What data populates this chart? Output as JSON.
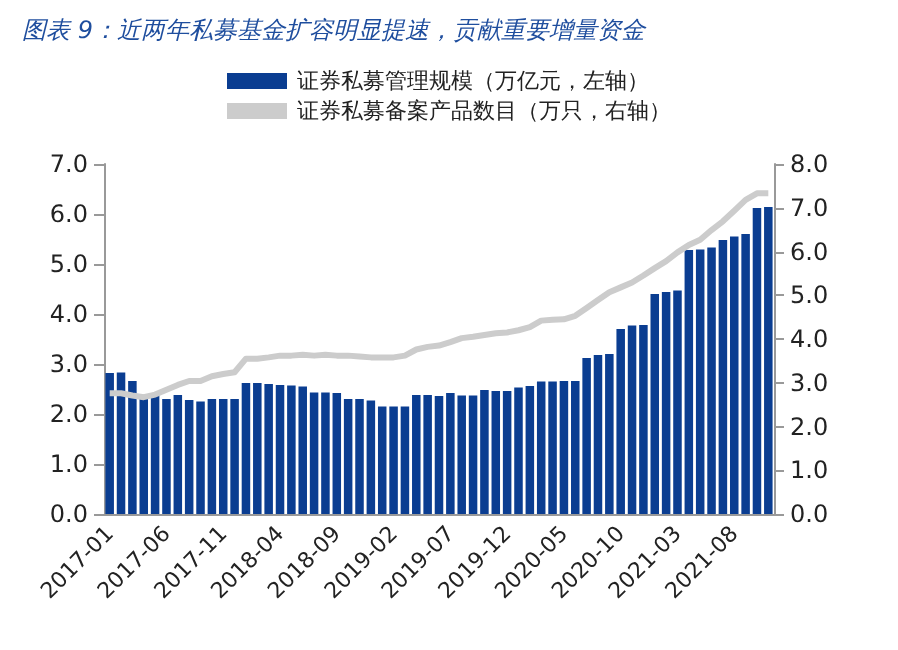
{
  "chart_data": {
    "type": "bar",
    "title": "图表 9：近两年私募基金扩容明显提速，贡献重要增量资金",
    "categories": [
      "2017-01",
      null,
      null,
      null,
      null,
      "2017-06",
      null,
      null,
      null,
      null,
      "2017-11",
      null,
      null,
      null,
      null,
      "2018-04",
      null,
      null,
      null,
      null,
      "2018-09",
      null,
      null,
      null,
      null,
      "2019-02",
      null,
      null,
      null,
      null,
      "2019-07",
      null,
      null,
      null,
      null,
      "2019-12",
      null,
      null,
      null,
      null,
      "2020-05",
      null,
      null,
      null,
      null,
      "2020-10",
      null,
      null,
      null,
      null,
      "2021-03",
      null,
      null,
      null,
      null,
      "2021-08",
      null,
      null,
      null
    ],
    "series": [
      {
        "name": "证券私募管理规模（万亿元，左轴）",
        "color": "#0a3d91",
        "values": [
          2.82,
          2.83,
          2.66,
          2.35,
          2.38,
          2.3,
          2.38,
          2.28,
          2.25,
          2.3,
          2.3,
          2.3,
          2.62,
          2.62,
          2.6,
          2.58,
          2.57,
          2.55,
          2.43,
          2.43,
          2.42,
          2.3,
          2.3,
          2.27,
          2.15,
          2.15,
          2.15,
          2.38,
          2.38,
          2.36,
          2.42,
          2.37,
          2.37,
          2.48,
          2.46,
          2.46,
          2.53,
          2.56,
          2.65,
          2.65,
          2.66,
          2.66,
          3.12,
          3.18,
          3.2,
          3.7,
          3.77,
          3.78,
          4.4,
          4.44,
          4.47,
          5.28,
          5.29,
          5.33,
          5.48,
          5.55,
          5.6,
          6.12,
          6.14
        ]
      },
      {
        "name": "证券私募备案产品数目（万只，右轴）",
        "type": "line",
        "axis": "y2",
        "color": "#cccccc",
        "values": [
          2.76,
          2.76,
          2.71,
          2.67,
          2.73,
          2.84,
          2.95,
          3.04,
          3.04,
          3.15,
          3.2,
          3.24,
          3.55,
          3.55,
          3.58,
          3.62,
          3.62,
          3.64,
          3.62,
          3.64,
          3.62,
          3.62,
          3.6,
          3.58,
          3.58,
          3.58,
          3.62,
          3.76,
          3.82,
          3.85,
          3.93,
          4.02,
          4.05,
          4.09,
          4.13,
          4.15,
          4.2,
          4.27,
          4.42,
          4.44,
          4.45,
          4.53,
          4.71,
          4.89,
          5.07,
          5.18,
          5.29,
          5.45,
          5.62,
          5.78,
          5.98,
          6.15,
          6.27,
          6.49,
          6.69,
          6.93,
          7.18,
          7.33,
          7.33
        ]
      }
    ],
    "ylim": [
      0,
      7
    ],
    "yticks": [
      {
        "value": 0,
        "label": "0.0"
      },
      {
        "value": 1,
        "label": "1.0"
      },
      {
        "value": 2,
        "label": "2.0"
      },
      {
        "value": 3,
        "label": "3.0"
      },
      {
        "value": 4,
        "label": "4.0"
      },
      {
        "value": 5,
        "label": "5.0"
      },
      {
        "value": 6,
        "label": "6.0"
      },
      {
        "value": 7,
        "label": "7.0"
      }
    ],
    "y2lim": [
      0,
      8
    ],
    "y2ticks": [
      {
        "value": 0,
        "label": "0.0"
      },
      {
        "value": 1,
        "label": "1.0"
      },
      {
        "value": 2,
        "label": "2.0"
      },
      {
        "value": 3,
        "label": "3.0"
      },
      {
        "value": 4,
        "label": "4.0"
      },
      {
        "value": 5,
        "label": "5.0"
      },
      {
        "value": 6,
        "label": "6.0"
      },
      {
        "value": 7,
        "label": "7.0"
      },
      {
        "value": 8,
        "label": "8.0"
      }
    ],
    "grid": false,
    "legend": "top",
    "marker": "none",
    "line_style": "solid"
  }
}
